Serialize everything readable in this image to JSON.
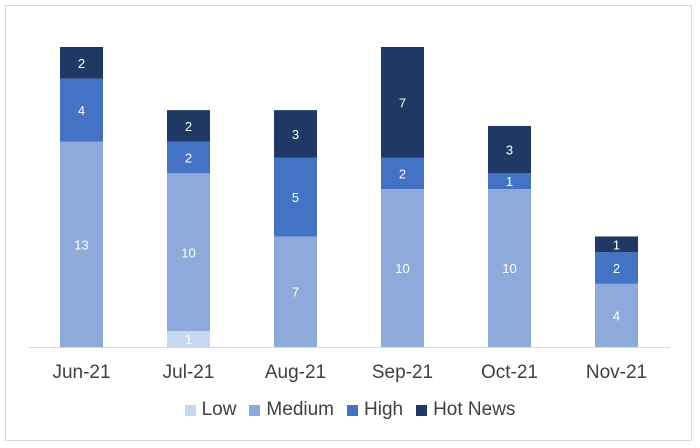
{
  "chart_data": {
    "type": "bar",
    "stacked": true,
    "categories": [
      "Jun-21",
      "Jul-21",
      "Aug-21",
      "Sep-21",
      "Oct-21",
      "Nov-21"
    ],
    "series": [
      {
        "name": "Low",
        "color": "#c5d9f1",
        "values": [
          0,
          1,
          0,
          0,
          0,
          0
        ]
      },
      {
        "name": "Medium",
        "color": "#8eaadb",
        "values": [
          13,
          10,
          7,
          10,
          10,
          4
        ]
      },
      {
        "name": "High",
        "color": "#4472c4",
        "values": [
          4,
          2,
          5,
          2,
          1,
          2
        ]
      },
      {
        "name": "Hot News",
        "color": "#1f3864",
        "values": [
          2,
          2,
          3,
          7,
          3,
          1
        ]
      }
    ],
    "title": "",
    "xlabel": "",
    "ylabel": "",
    "ylim": [
      0,
      19
    ],
    "grid": false,
    "legend_position": "bottom",
    "data_labels": true
  }
}
